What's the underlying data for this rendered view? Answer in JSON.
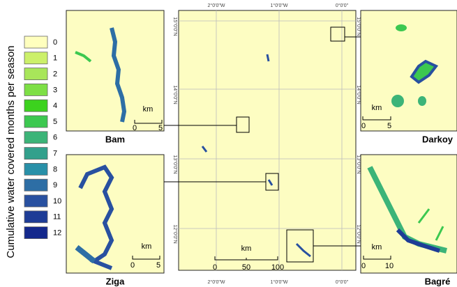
{
  "legend": {
    "title": "Cumulative water covered months per season",
    "items": [
      {
        "label": "0",
        "color": "#ffffbe"
      },
      {
        "label": "1",
        "color": "#ccf06a"
      },
      {
        "label": "2",
        "color": "#a8e65a"
      },
      {
        "label": "3",
        "color": "#7ddf45"
      },
      {
        "label": "4",
        "color": "#3cd21e"
      },
      {
        "label": "5",
        "color": "#3cc850"
      },
      {
        "label": "6",
        "color": "#3cb478"
      },
      {
        "label": "7",
        "color": "#32a08c"
      },
      {
        "label": "8",
        "color": "#2890a8"
      },
      {
        "label": "9",
        "color": "#2d6ea5"
      },
      {
        "label": "10",
        "color": "#2850a0"
      },
      {
        "label": "11",
        "color": "#1e3c96"
      },
      {
        "label": "12",
        "color": "#14288c"
      }
    ]
  },
  "panels": [
    {
      "name": "Bam",
      "scale": {
        "unit": "km",
        "ticks": [
          "0",
          "5"
        ]
      }
    },
    {
      "name": "Ziga",
      "scale": {
        "unit": "km",
        "ticks": [
          "0",
          "5"
        ]
      }
    },
    {
      "name": "Darkoy",
      "scale": {
        "unit": "km",
        "ticks": [
          "0",
          "5"
        ]
      }
    },
    {
      "name": "Bagré",
      "scale": {
        "unit": "km",
        "ticks": [
          "0",
          "10"
        ]
      }
    }
  ],
  "main_map": {
    "longitude_labels": [
      "2°0'0\"W",
      "1°0'0\"W",
      "0°0'0\""
    ],
    "latitude_labels": [
      "15°0'0\"N",
      "14°0'0\"N",
      "13°0'0\"N",
      "12°0'0\"N"
    ],
    "scale": {
      "unit": "km",
      "ticks": [
        "0",
        "50",
        "100"
      ]
    }
  }
}
